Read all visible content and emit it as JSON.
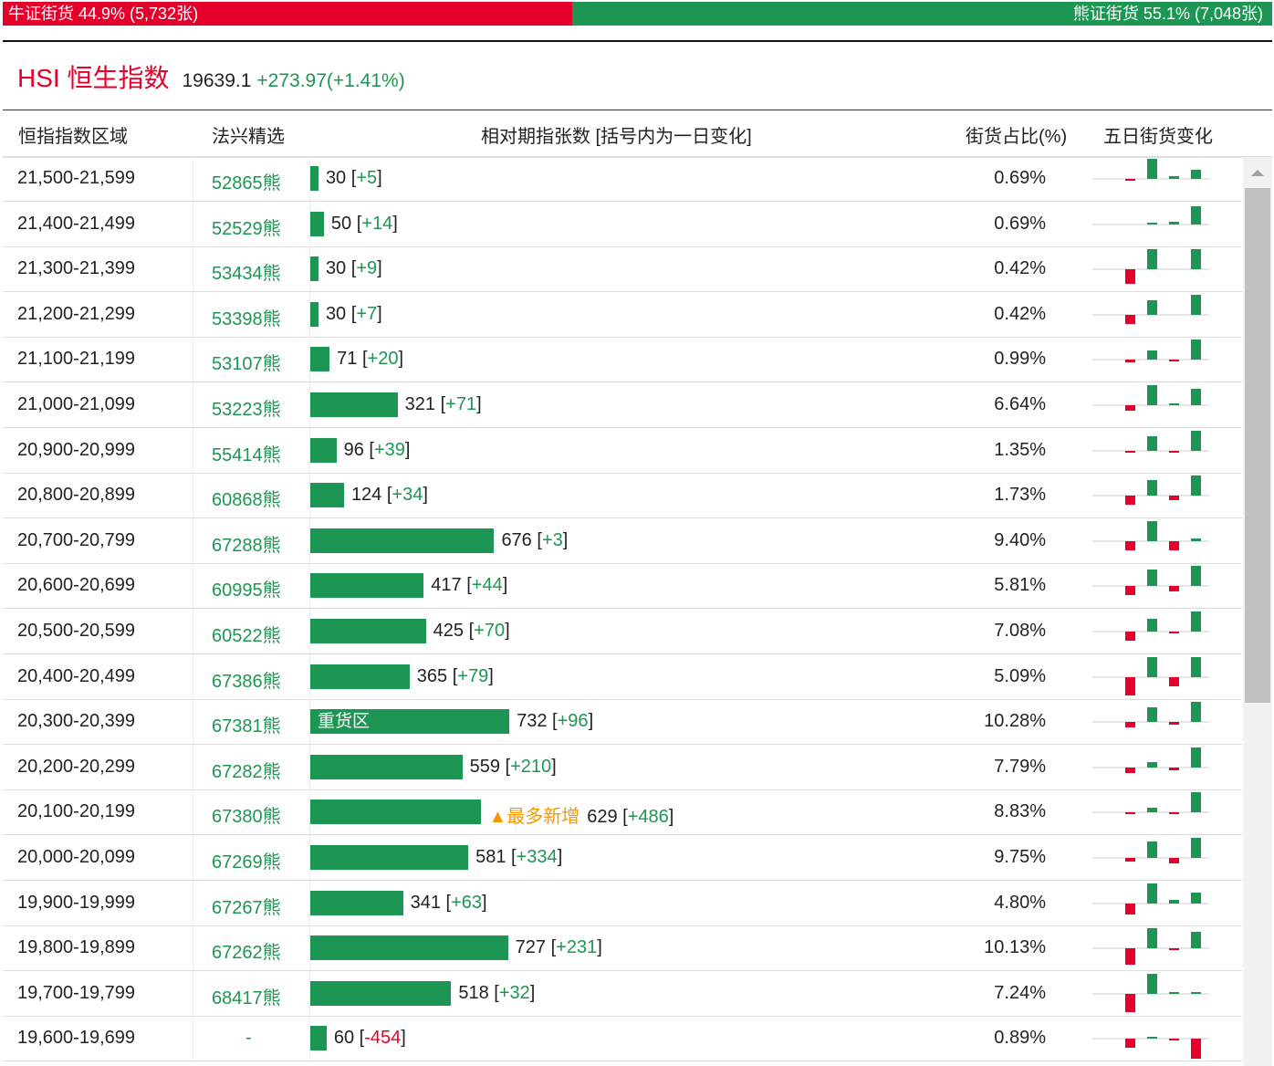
{
  "summary": {
    "bull": "牛证街货 44.9% (5,732张)",
    "bear": "熊证街货 55.1% (7,048张)"
  },
  "header": {
    "code": "HSI",
    "name": "恒生指数",
    "price": "19639.1",
    "change": "+273.97(+1.41%)"
  },
  "table": {
    "columns": [
      "恒指指数区域",
      "法兴精选",
      "相对期指张数 [括号内为一日变化]",
      "街货占比(%)",
      "五日街货变化"
    ],
    "rows": [
      {
        "range": "21,500-21,599",
        "code": "52865熊",
        "count": 30,
        "change": "+5",
        "share": "0.69%",
        "five_day": [
          -2,
          22,
          3,
          10
        ]
      },
      {
        "range": "21,400-21,499",
        "code": "52529熊",
        "count": 50,
        "change": "+14",
        "share": "0.69%",
        "five_day": [
          0,
          2,
          3,
          20
        ]
      },
      {
        "range": "21,300-21,399",
        "code": "53434熊",
        "count": 30,
        "change": "+9",
        "share": "0.42%",
        "five_day": [
          -16,
          22,
          0,
          22
        ]
      },
      {
        "range": "21,200-21,299",
        "code": "53398熊",
        "count": 30,
        "change": "+7",
        "share": "0.42%",
        "five_day": [
          -10,
          16,
          0,
          22
        ]
      },
      {
        "range": "21,100-21,199",
        "code": "53107熊",
        "count": 71,
        "change": "+20",
        "share": "0.99%",
        "five_day": [
          -3,
          10,
          -2,
          22
        ]
      },
      {
        "range": "21,000-21,099",
        "code": "53223熊",
        "count": 321,
        "change": "+71",
        "share": "6.64%",
        "five_day": [
          -6,
          22,
          2,
          18
        ]
      },
      {
        "range": "20,900-20,999",
        "code": "55414熊",
        "count": 96,
        "change": "+39",
        "share": "1.35%",
        "five_day": [
          -2,
          16,
          -2,
          22
        ]
      },
      {
        "range": "20,800-20,899",
        "code": "60868熊",
        "count": 124,
        "change": "+34",
        "share": "1.73%",
        "five_day": [
          -10,
          17,
          -5,
          22
        ]
      },
      {
        "range": "20,700-20,799",
        "code": "67288熊",
        "count": 676,
        "change": "+3",
        "share": "9.40%",
        "five_day": [
          -10,
          22,
          -10,
          3
        ]
      },
      {
        "range": "20,600-20,699",
        "code": "60995熊",
        "count": 417,
        "change": "+44",
        "share": "5.81%",
        "five_day": [
          -10,
          18,
          -6,
          22
        ]
      },
      {
        "range": "20,500-20,599",
        "code": "60522熊",
        "count": 425,
        "change": "+70",
        "share": "7.08%",
        "five_day": [
          -10,
          14,
          -2,
          22
        ]
      },
      {
        "range": "20,400-20,499",
        "code": "67386熊",
        "count": 365,
        "change": "+79",
        "share": "5.09%",
        "five_day": [
          -20,
          22,
          -10,
          22
        ]
      },
      {
        "range": "20,300-20,399",
        "code": "67381熊",
        "count": 732,
        "change": "+96",
        "share": "10.28%",
        "five_day": [
          -6,
          16,
          -3,
          22
        ],
        "bar_label": "重货区"
      },
      {
        "range": "20,200-20,299",
        "code": "67282熊",
        "count": 559,
        "change": "+210",
        "share": "7.79%",
        "five_day": [
          -6,
          6,
          -3,
          22
        ]
      },
      {
        "range": "20,100-20,199",
        "code": "67380熊",
        "count": 629,
        "change": "+486",
        "share": "8.83%",
        "five_day": [
          -2,
          5,
          -2,
          22
        ],
        "note": "▲最多新增"
      },
      {
        "range": "20,000-20,099",
        "code": "67269熊",
        "count": 581,
        "change": "+334",
        "share": "9.75%",
        "five_day": [
          -4,
          18,
          -6,
          22
        ]
      },
      {
        "range": "19,900-19,999",
        "code": "67267熊",
        "count": 341,
        "change": "+63",
        "share": "4.80%",
        "five_day": [
          -12,
          22,
          4,
          12
        ]
      },
      {
        "range": "19,800-19,899",
        "code": "67262熊",
        "count": 727,
        "change": "+231",
        "share": "10.13%",
        "five_day": [
          -18,
          22,
          -2,
          18
        ]
      },
      {
        "range": "19,700-19,799",
        "code": "68417熊",
        "count": 518,
        "change": "+32",
        "share": "7.24%",
        "five_day": [
          -20,
          22,
          2,
          2
        ]
      },
      {
        "range": "19,600-19,699",
        "code": "-",
        "count": 60,
        "change": "-454",
        "share": "0.89%",
        "five_day": [
          -10,
          2,
          -2,
          -22
        ]
      }
    ]
  }
}
